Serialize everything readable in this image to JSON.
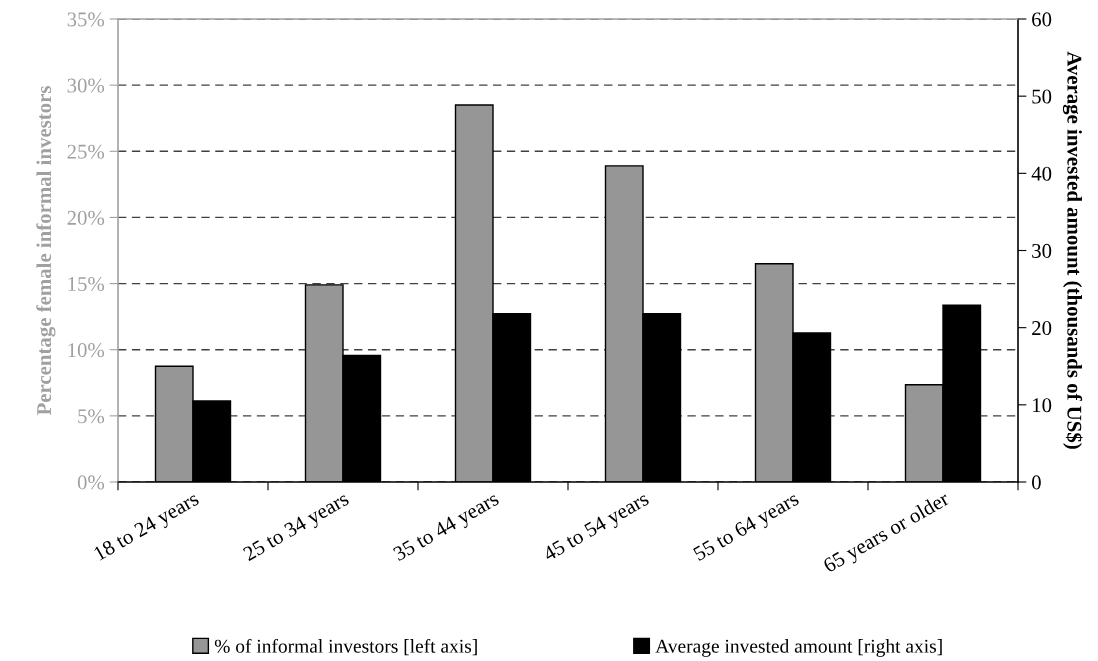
{
  "chart_data": {
    "type": "bar",
    "ylabel": "Percentage female informal investors",
    "y2label": "Average invested amount (thousands of US$)",
    "categories": [
      "18 to 24 years",
      "25 to 34 years",
      "35 to 44 years",
      "45 to 54 years",
      "55 to 64 years",
      "65 years or older"
    ],
    "series": [
      {
        "name": "% of informal investors [left axis]",
        "color": "#969696",
        "values": [
          8.75,
          14.9,
          28.5,
          23.9,
          16.5,
          7.35
        ]
      },
      {
        "name": "Average invested amount [right axis]",
        "color": "#000000",
        "axis": "y2",
        "values": [
          10.5,
          16.4,
          21.8,
          21.8,
          19.3,
          22.9
        ]
      }
    ],
    "ylim": [
      0,
      35
    ],
    "yticks": [
      {
        "value": 0,
        "label": "0%"
      },
      {
        "value": 5,
        "label": "5%"
      },
      {
        "value": 10,
        "label": "10%"
      },
      {
        "value": 15,
        "label": "15%"
      },
      {
        "value": 20,
        "label": "20%"
      },
      {
        "value": 25,
        "label": "25%"
      },
      {
        "value": 30,
        "label": "30%"
      },
      {
        "value": 35,
        "label": "35%"
      }
    ],
    "y2lim": [
      0,
      60
    ],
    "y2ticks": [
      0,
      10,
      20,
      30,
      40,
      50,
      60
    ],
    "grid": "y",
    "legend": "bottom"
  }
}
